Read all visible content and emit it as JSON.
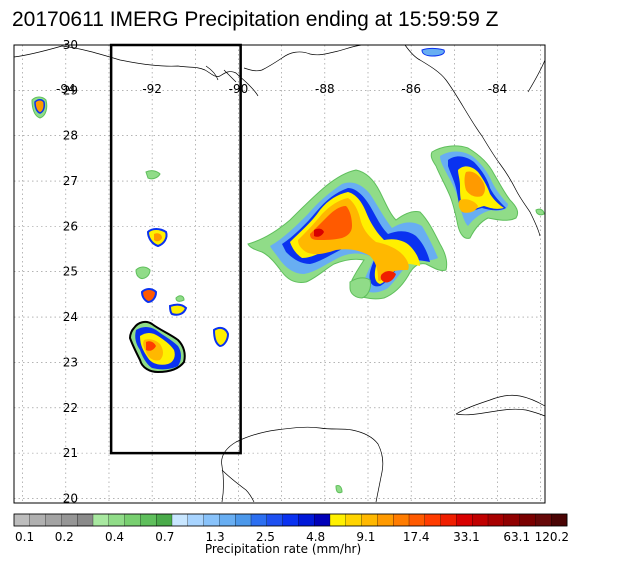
{
  "title": "20170611 IMERG Precipitation ending at 15:59:59 Z",
  "map": {
    "lon_labels": [
      "-94",
      "-92",
      "-90",
      "-88",
      "-86",
      "-84"
    ],
    "lat_labels": [
      "30",
      "29",
      "28",
      "27",
      "26",
      "25",
      "24",
      "23",
      "22",
      "21",
      "20"
    ],
    "extent": {
      "lon_min": -95.2,
      "lon_max": -82.9,
      "lat_min": 19.9,
      "lat_max": 30.0
    },
    "box": {
      "lon_min": -92.95,
      "lon_max": -89.95,
      "lat_min": 21.0,
      "lat_max": 30.0
    }
  },
  "colorbar": {
    "label": "Precipitation rate (mm/hr)",
    "tick_labels": [
      "0.1",
      "0.2",
      "0.4",
      "0.7",
      "1.3",
      "2.5",
      "4.8",
      "9.1",
      "17.4",
      "33.1",
      "63.1",
      "120.2"
    ],
    "colors": [
      "#bdbdbd",
      "#b0b0b0",
      "#a3a3a3",
      "#969696",
      "#8a8a8a",
      "#a8e8a0",
      "#90dc88",
      "#78cf70",
      "#5fbf5c",
      "#4aab4a",
      "#c8e6ff",
      "#a8d4ff",
      "#88c2fa",
      "#68aef2",
      "#4c98ea",
      "#2c6ff0",
      "#1e50f0",
      "#0a32f0",
      "#0018d8",
      "#0000b8",
      "#fff000",
      "#ffd400",
      "#ffb800",
      "#ff9a00",
      "#ff7c00",
      "#ff5a00",
      "#ff3c00",
      "#f01e00",
      "#d80000",
      "#c00000",
      "#a80000",
      "#900000",
      "#7a0000",
      "#660808",
      "#4a0404"
    ]
  }
}
